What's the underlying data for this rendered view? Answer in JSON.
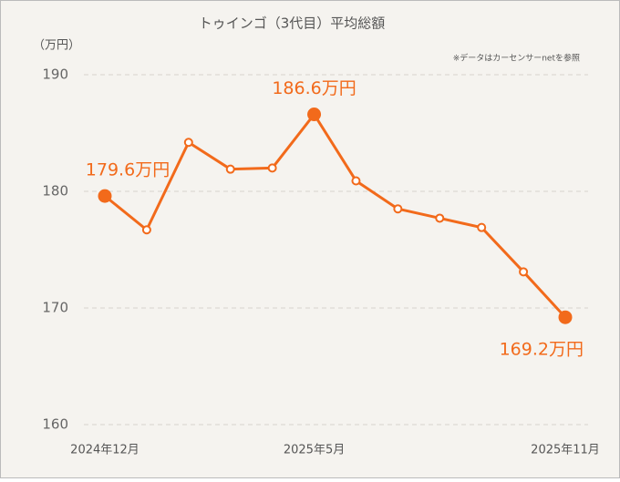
{
  "chart_data": {
    "type": "line",
    "title": "トゥインゴ（3代目）平均総額",
    "y_axis_label": "（万円）",
    "note": "※データはカーセンサーnetを参照",
    "categories": [
      "2024年12月",
      null,
      null,
      null,
      null,
      "2025年5月",
      null,
      null,
      null,
      null,
      null,
      "2025年11月"
    ],
    "series": [
      {
        "name": "平均総額",
        "color": "#f26a1b",
        "values": [
          179.6,
          176.7,
          184.2,
          181.9,
          182.0,
          186.6,
          180.9,
          178.5,
          177.7,
          176.9,
          173.1,
          169.2
        ],
        "value_labels": [
          "179.6万円",
          null,
          null,
          null,
          null,
          "186.6万円",
          null,
          null,
          null,
          null,
          null,
          "169.2万円"
        ]
      }
    ],
    "ylim": [
      160,
      190
    ],
    "yticks": [
      160,
      170,
      180,
      190
    ],
    "grid": true
  }
}
